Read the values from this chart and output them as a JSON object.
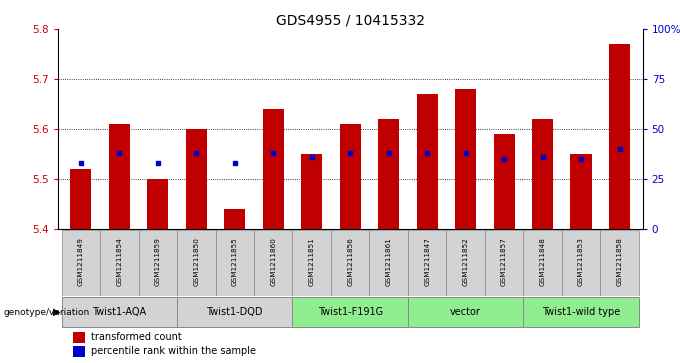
{
  "title": "GDS4955 / 10415332",
  "samples": [
    "GSM1211849",
    "GSM1211854",
    "GSM1211859",
    "GSM1211850",
    "GSM1211855",
    "GSM1211860",
    "GSM1211851",
    "GSM1211856",
    "GSM1211861",
    "GSM1211847",
    "GSM1211852",
    "GSM1211857",
    "GSM1211848",
    "GSM1211853",
    "GSM1211858"
  ],
  "bar_values": [
    5.52,
    5.61,
    5.5,
    5.6,
    5.44,
    5.64,
    5.55,
    5.61,
    5.62,
    5.67,
    5.68,
    5.59,
    5.62,
    5.55,
    5.77
  ],
  "percentile_values": [
    33,
    38,
    33,
    38,
    33,
    38,
    36,
    38,
    38,
    38,
    38,
    35,
    36,
    35,
    40
  ],
  "ymin": 5.4,
  "ymax": 5.8,
  "yticks": [
    5.4,
    5.5,
    5.6,
    5.7,
    5.8
  ],
  "right_yticks": [
    0,
    25,
    50,
    75,
    100
  ],
  "groups": [
    {
      "label": "Twist1-AQA",
      "indices": [
        0,
        1,
        2
      ],
      "color": "#d3d3d3"
    },
    {
      "label": "Twist1-DQD",
      "indices": [
        3,
        4,
        5
      ],
      "color": "#d3d3d3"
    },
    {
      "label": "Twist1-F191G",
      "indices": [
        6,
        7,
        8
      ],
      "color": "#90ee90"
    },
    {
      "label": "vector",
      "indices": [
        9,
        10,
        11
      ],
      "color": "#90ee90"
    },
    {
      "label": "Twist1-wild type",
      "indices": [
        12,
        13,
        14
      ],
      "color": "#90ee90"
    }
  ],
  "bar_color": "#c00000",
  "dot_color": "#0000cd",
  "background_color": "#ffffff",
  "bar_width": 0.55,
  "ylabel_color_left": "#cc0000",
  "ylabel_color_right": "#0000cc",
  "title_fontsize": 10,
  "label_row_color": "#d3d3d3",
  "legend_red_label": "transformed count",
  "legend_blue_label": "percentile rank within the sample"
}
